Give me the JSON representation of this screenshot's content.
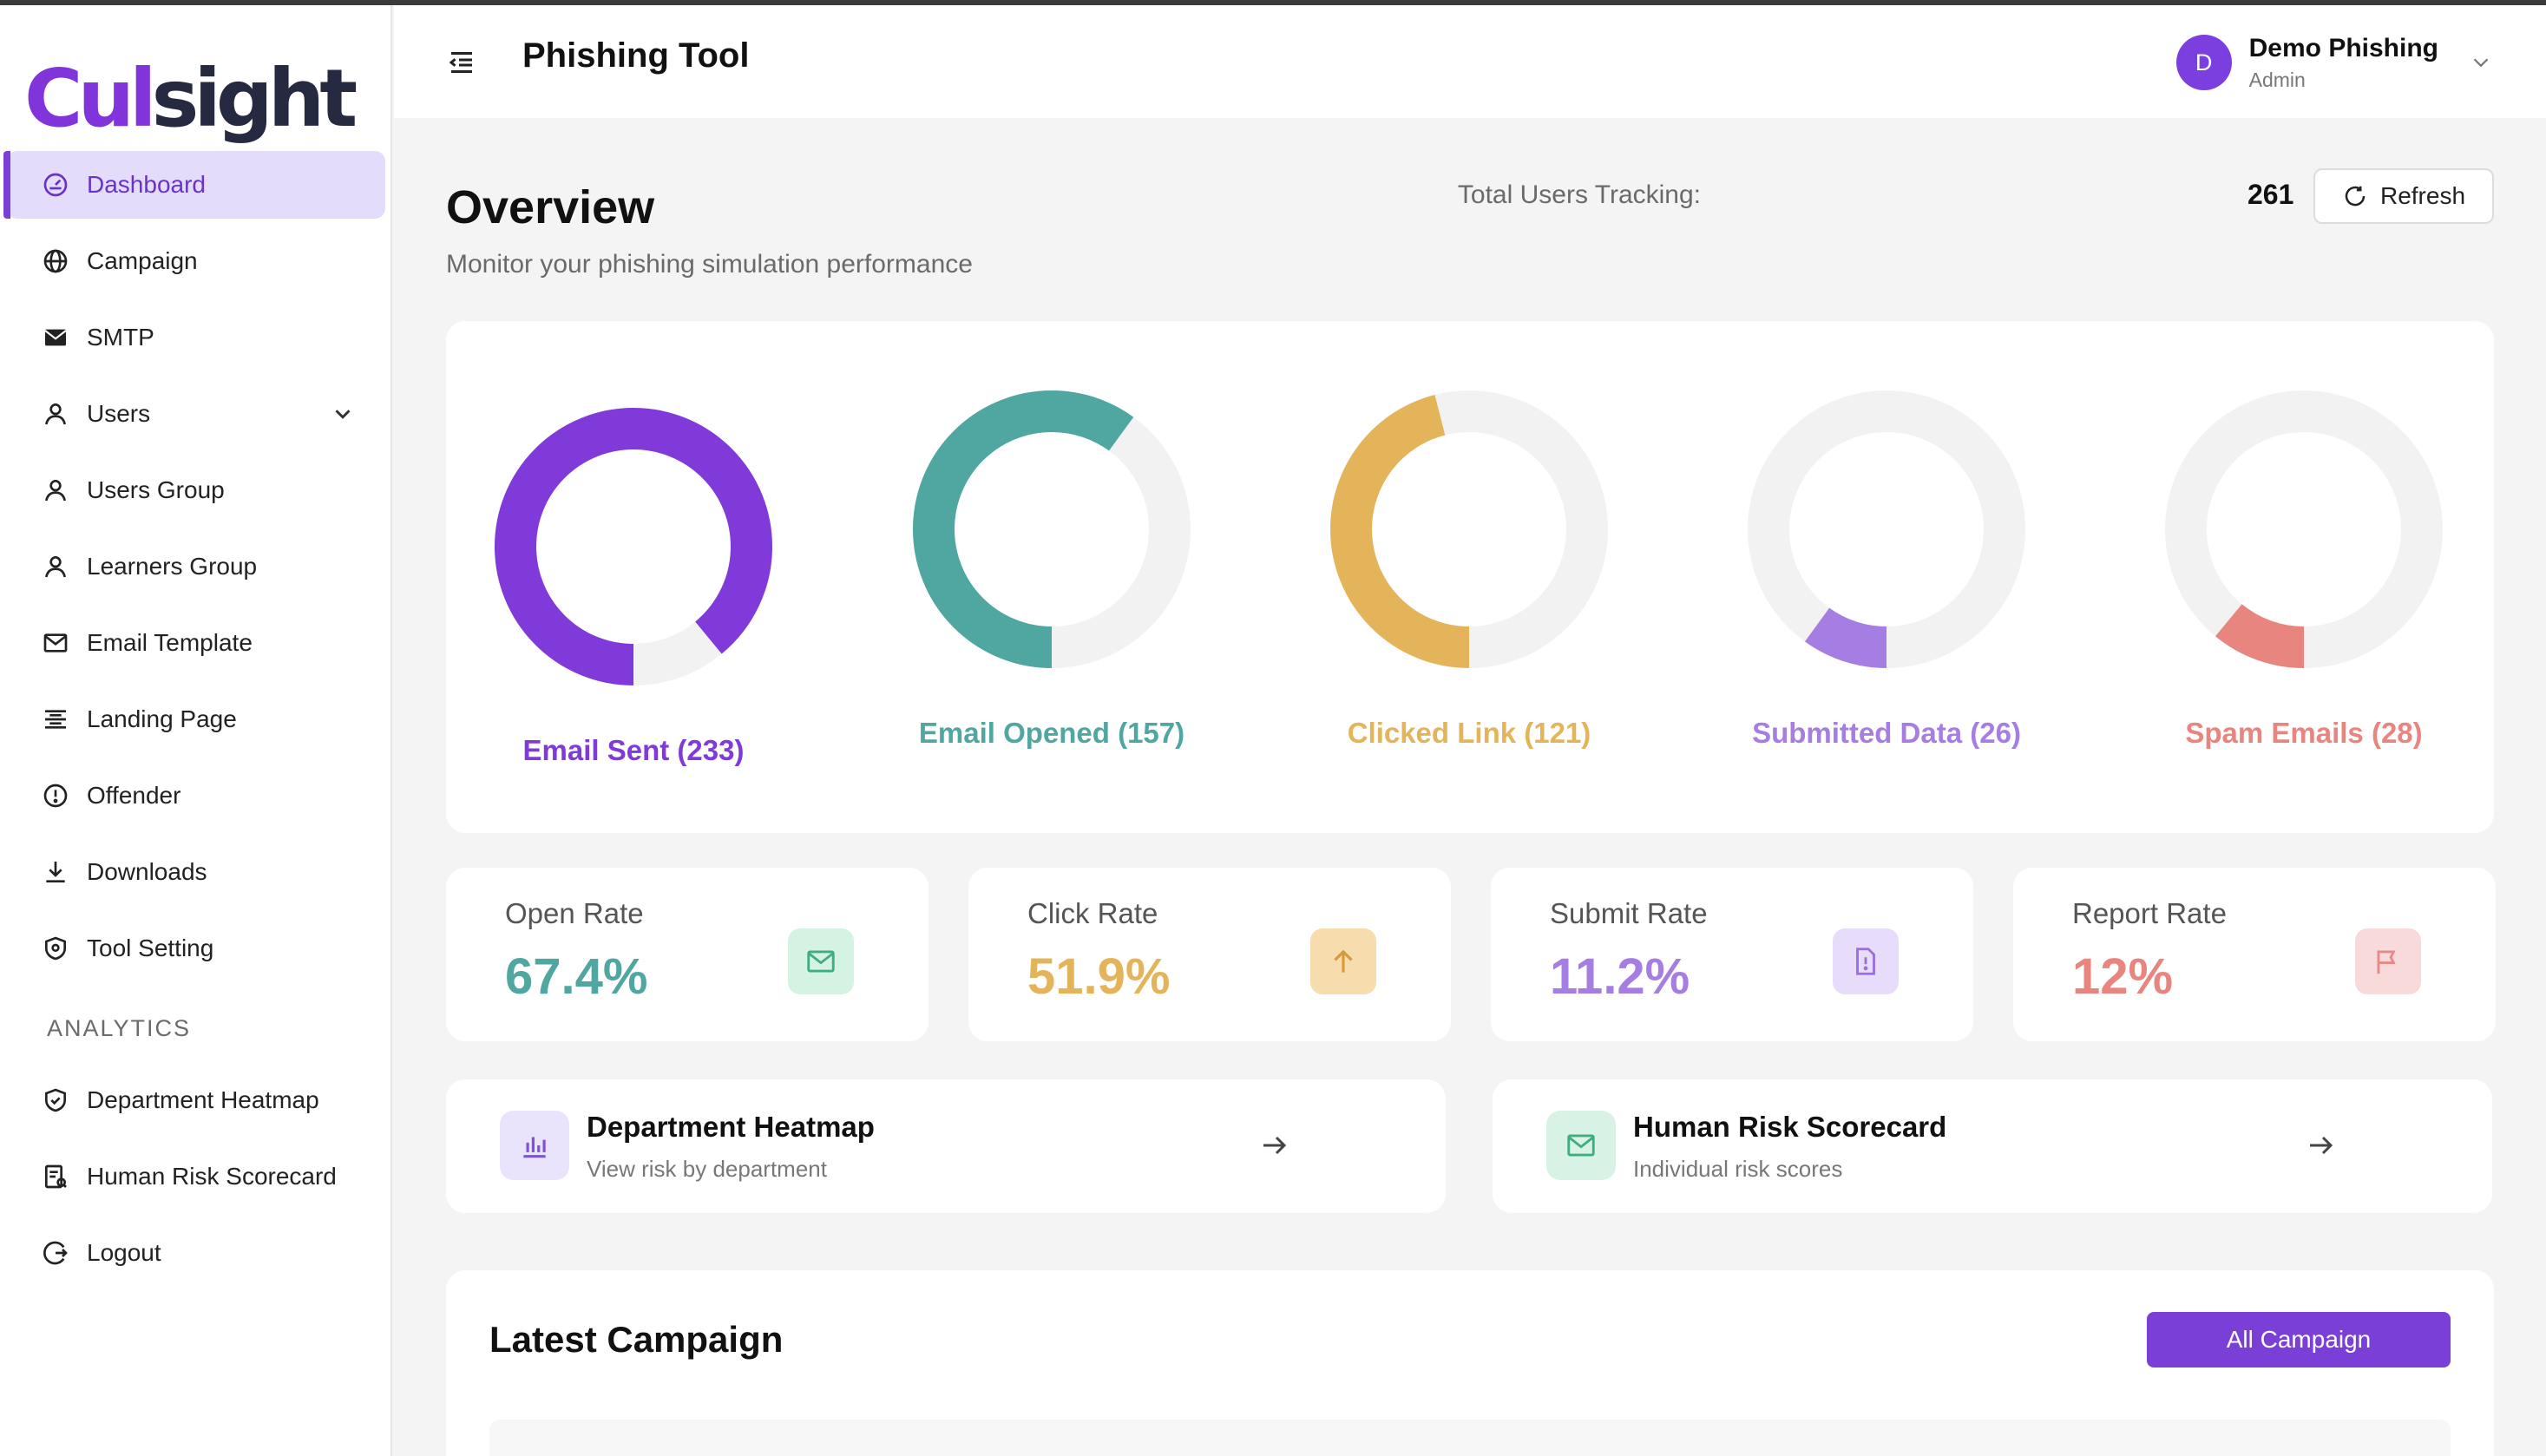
{
  "brand": {
    "logo_part1": "Cul",
    "logo_part2": "sight"
  },
  "sidebar": {
    "items": [
      {
        "label": "Dashboard",
        "icon": "dashboard-icon",
        "active": true
      },
      {
        "label": "Campaign",
        "icon": "globe-icon"
      },
      {
        "label": "SMTP",
        "icon": "mail-filled-icon"
      },
      {
        "label": "Users",
        "icon": "user-icon",
        "has_chevron": true
      },
      {
        "label": "Users Group",
        "icon": "user-icon"
      },
      {
        "label": "Learners Group",
        "icon": "user-icon"
      },
      {
        "label": "Email Template",
        "icon": "mail-icon"
      },
      {
        "label": "Landing Page",
        "icon": "layout-icon"
      },
      {
        "label": "Offender",
        "icon": "alert-circle-icon"
      },
      {
        "label": "Downloads",
        "icon": "download-icon"
      },
      {
        "label": "Tool Setting",
        "icon": "shield-icon"
      }
    ],
    "analytics_label": "ANALYTICS",
    "analytics_items": [
      {
        "label": "Department Heatmap",
        "icon": "shield-check-icon"
      },
      {
        "label": "Human Risk Scorecard",
        "icon": "scorecard-icon"
      },
      {
        "label": "Logout",
        "icon": "logout-icon"
      }
    ]
  },
  "header": {
    "title": "Phishing Tool",
    "user": {
      "initial": "D",
      "name": "Demo Phishing",
      "role": "Admin"
    }
  },
  "overview": {
    "title": "Overview",
    "subtitle": "Monitor your phishing simulation performance",
    "tracking_label": "Total Users Tracking:",
    "tracking_value": "261",
    "refresh_label": "Refresh"
  },
  "donuts": [
    {
      "label": "Email Sent (233)",
      "fraction": 0.89,
      "color": "#7f3ad9",
      "start_deg": 90
    },
    {
      "label": "Email Opened (157)",
      "fraction": 0.6,
      "color": "#50a6a0",
      "start_deg": 90
    },
    {
      "label": "Clicked Link (121)",
      "fraction": 0.46,
      "color": "#e3b45a",
      "start_deg": 90
    },
    {
      "label": "Submitted Data (26)",
      "fraction": 0.1,
      "color": "#a67de2",
      "start_deg": 90
    },
    {
      "label": "Spam Emails (28)",
      "fraction": 0.11,
      "color": "#e9857f",
      "start_deg": 90
    }
  ],
  "donut_track_color": "#f2f2f2",
  "stats": [
    {
      "label": "Open Rate",
      "value": "67.4%",
      "color": "#50a6a0",
      "icon": "mail-icon",
      "icon_bg": "#d5f3e3",
      "icon_color": "#3fae7e"
    },
    {
      "label": "Click Rate",
      "value": "51.9%",
      "color": "#e3b45a",
      "icon": "arrow-up-icon",
      "icon_bg": "#f7dcae",
      "icon_color": "#d59a3c"
    },
    {
      "label": "Submit Rate",
      "value": "11.2%",
      "color": "#a67de2",
      "icon": "document-alert-icon",
      "icon_bg": "#e7dcfa",
      "icon_color": "#9a6ee0"
    },
    {
      "label": "Report Rate",
      "value": "12%",
      "color": "#e9857f",
      "icon": "flag-icon",
      "icon_bg": "#f9dada",
      "icon_color": "#e58a86"
    }
  ],
  "links": [
    {
      "title": "Department Heatmap",
      "subtitle": "View risk by department",
      "icon": "bar-chart-icon",
      "icon_bg": "#e9e3fb",
      "icon_color": "#8150db"
    },
    {
      "title": "Human Risk Scorecard",
      "subtitle": "Individual risk scores",
      "icon": "mail-icon",
      "icon_bg": "#d8f3e6",
      "icon_color": "#3fae7e"
    }
  ],
  "latest": {
    "title": "Latest Campaign",
    "button_label": "All Campaign"
  }
}
